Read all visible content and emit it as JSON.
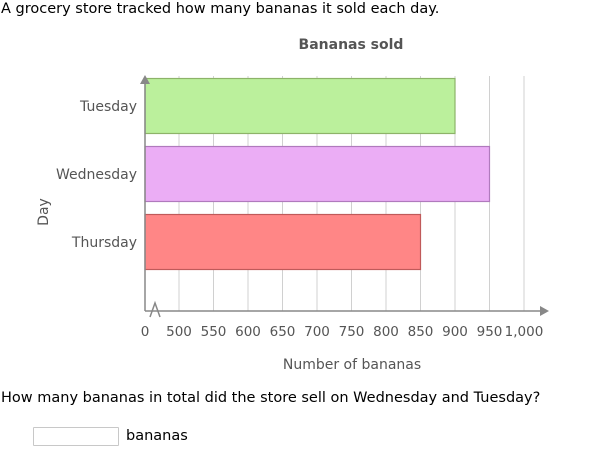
{
  "intro_text": "A grocery store tracked how many bananas it sold each day.",
  "question_text": "How many bananas in total did the store sell on Wednesday and Tuesday?",
  "answer": {
    "value": "",
    "unit": "bananas"
  },
  "chart_data": {
    "type": "bar",
    "orientation": "horizontal",
    "title": "Bananas sold",
    "xlabel": "Number of bananas",
    "ylabel": "Day",
    "categories": [
      "Tuesday",
      "Wednesday",
      "Thursday"
    ],
    "values": [
      900,
      950,
      850
    ],
    "colors": [
      "#bbf09c",
      "#ebadf5",
      "#ff8686"
    ],
    "edge_colors": [
      "#8db369",
      "#b07abd",
      "#c05a5a"
    ],
    "xlim": [
      450,
      1000
    ],
    "axis_break": true,
    "x_ticks": [
      {
        "value": 0,
        "label": "0"
      },
      {
        "value": 500,
        "label": "500"
      },
      {
        "value": 550,
        "label": "550"
      },
      {
        "value": 600,
        "label": "600"
      },
      {
        "value": 650,
        "label": "650"
      },
      {
        "value": 700,
        "label": "700"
      },
      {
        "value": 750,
        "label": "750"
      },
      {
        "value": 800,
        "label": "800"
      },
      {
        "value": 850,
        "label": "850"
      },
      {
        "value": 900,
        "label": "900"
      },
      {
        "value": 950,
        "label": "950"
      },
      {
        "value": 1000,
        "label": "1,000"
      }
    ],
    "grid": true
  }
}
